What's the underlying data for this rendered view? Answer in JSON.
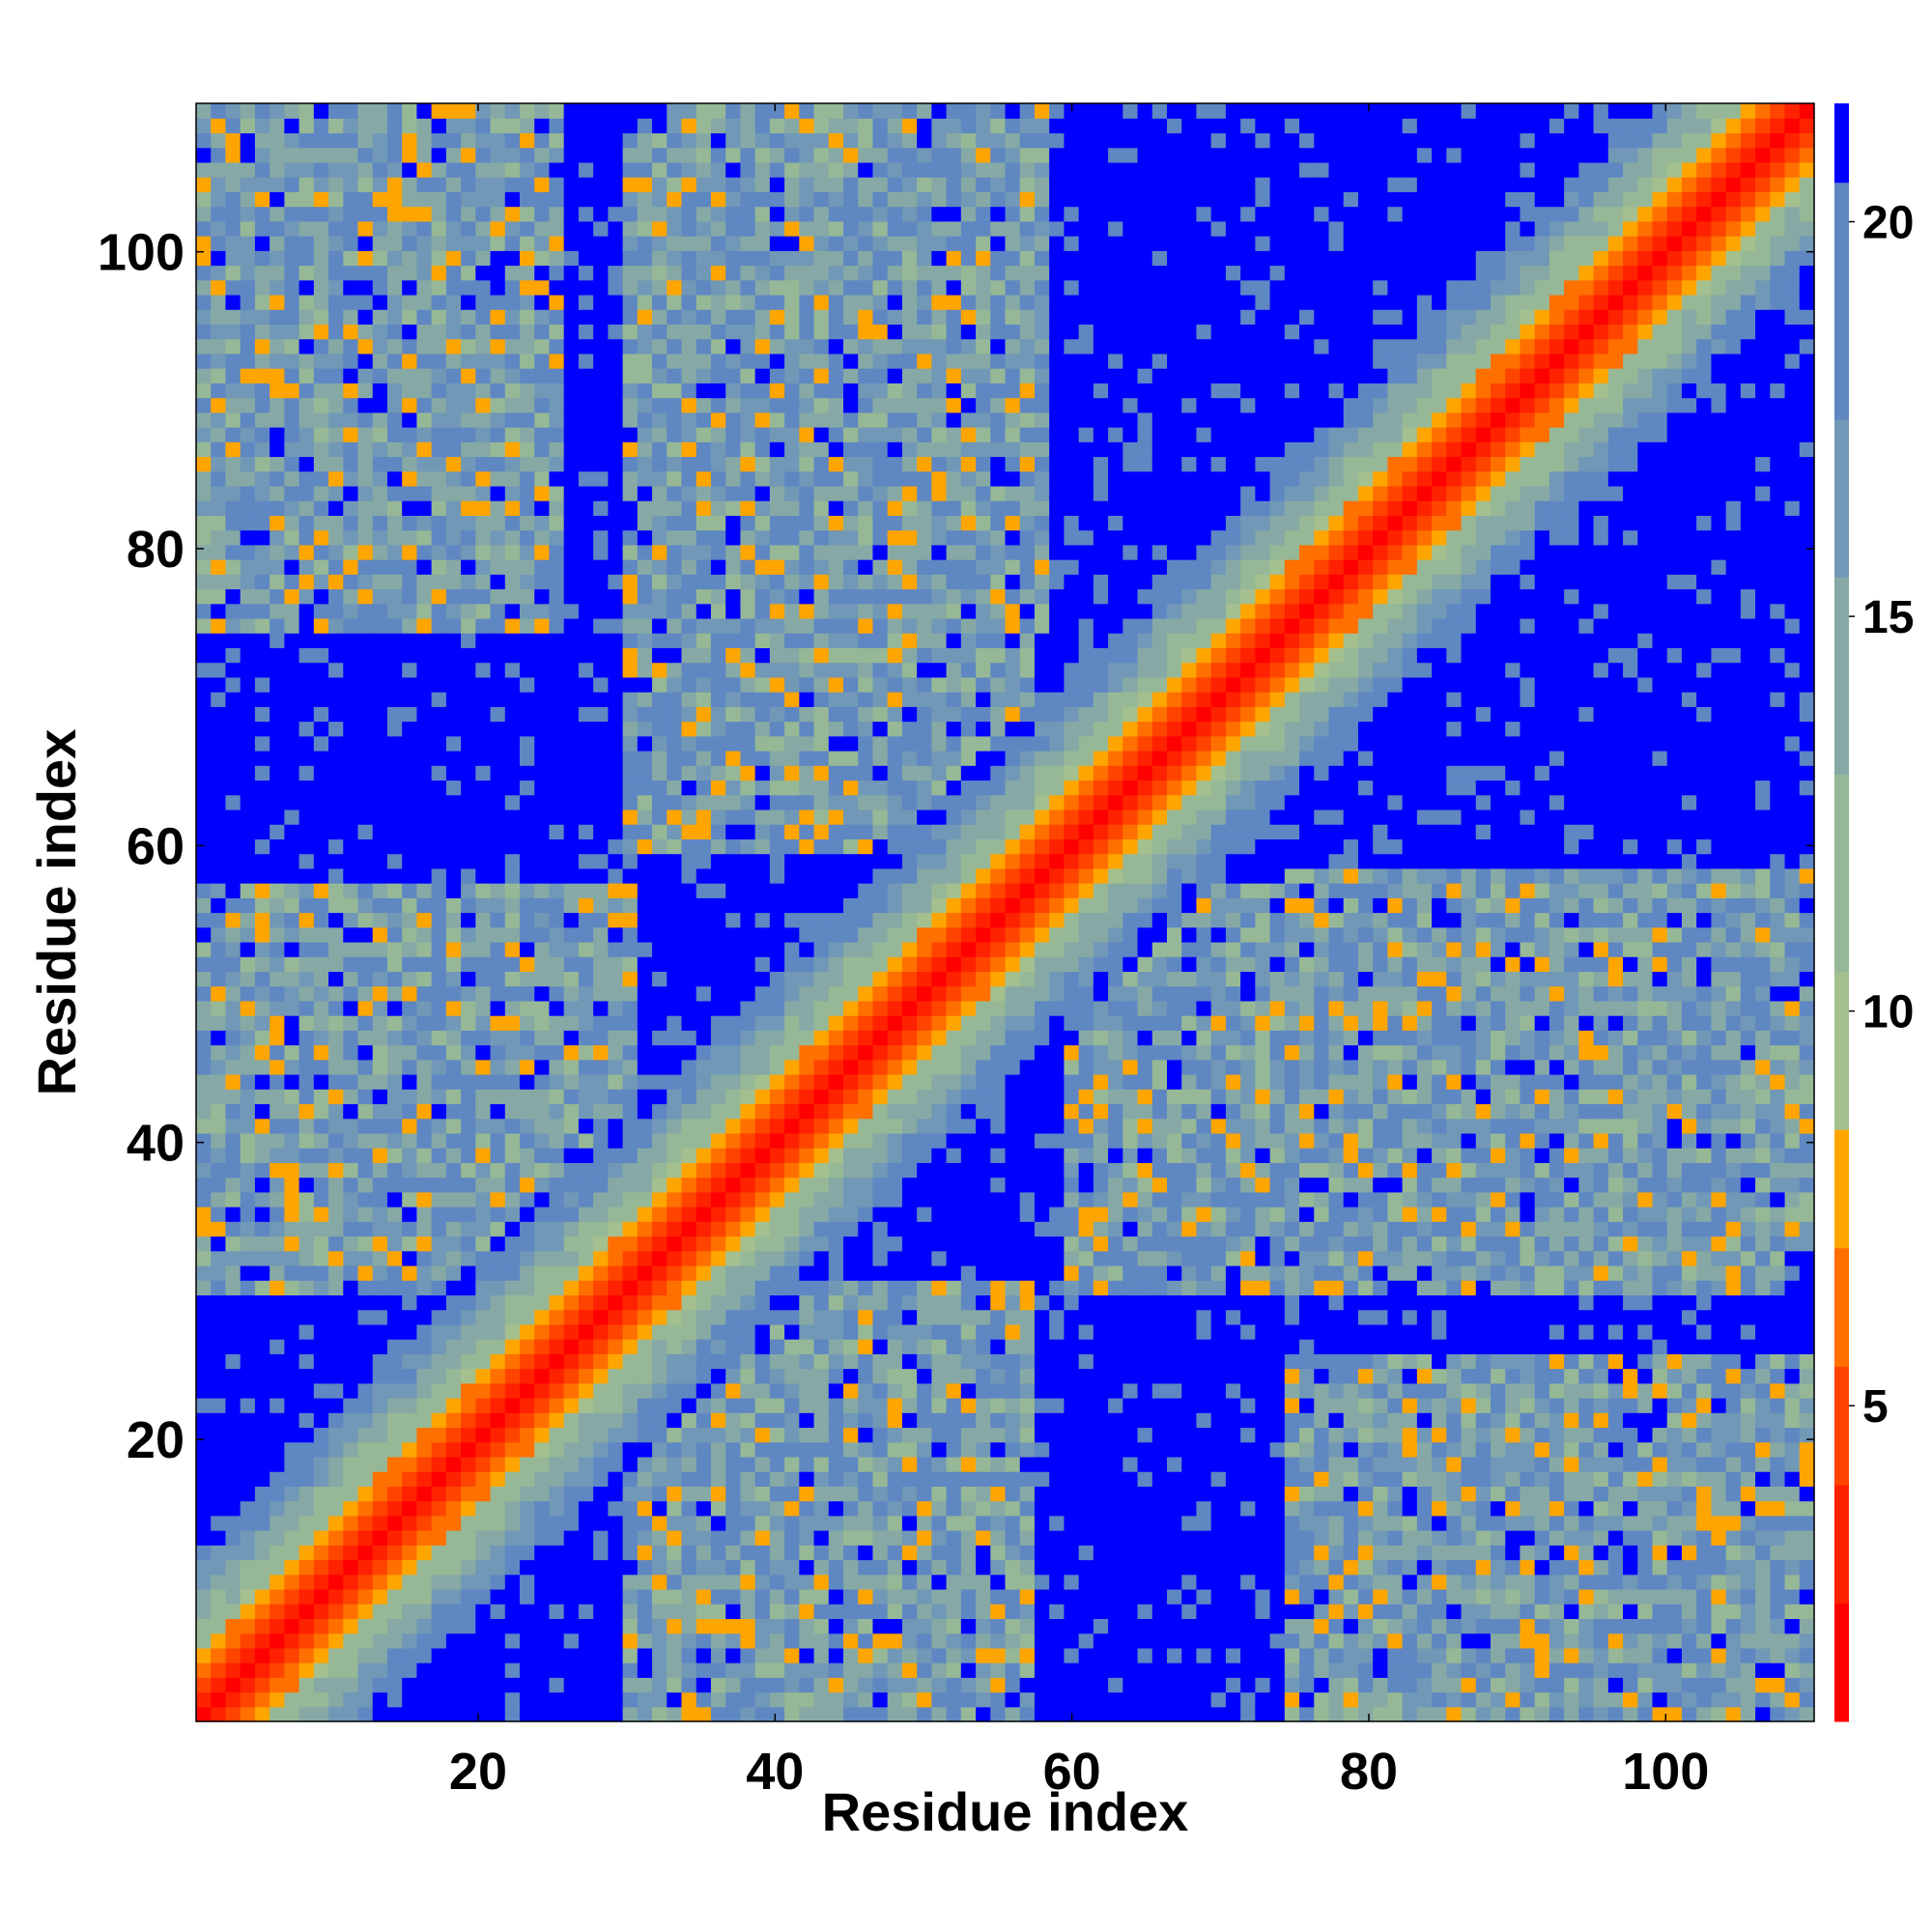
{
  "chart_data": {
    "type": "heatmap",
    "title": "",
    "xlabel": "Residue index",
    "ylabel": "Residue index",
    "n_residues": 110,
    "xlim": [
      1,
      110
    ],
    "ylim": [
      1,
      110
    ],
    "xticks": [
      20,
      40,
      60,
      80,
      100
    ],
    "yticks": [
      20,
      40,
      60,
      80,
      100
    ],
    "colorbar": {
      "range": [
        1,
        21.5
      ],
      "ticks": [
        5,
        10,
        15,
        20
      ],
      "levels": [
        {
          "from": 1.0,
          "to": 2.5,
          "color": "#ff0000"
        },
        {
          "from": 2.5,
          "to": 4.0,
          "color": "#ff2200"
        },
        {
          "from": 4.0,
          "to": 5.5,
          "color": "#ff4400"
        },
        {
          "from": 5.5,
          "to": 7.0,
          "color": "#ff7000"
        },
        {
          "from": 7.0,
          "to": 8.5,
          "color": "#ffa500"
        },
        {
          "from": 8.5,
          "to": 10.5,
          "color": "#a4c08e"
        },
        {
          "from": 10.5,
          "to": 13.0,
          "color": "#96b896"
        },
        {
          "from": 13.0,
          "to": 15.5,
          "color": "#86a9a6"
        },
        {
          "from": 15.5,
          "to": 17.5,
          "color": "#7198b6"
        },
        {
          "from": 17.5,
          "to": 20.5,
          "color": "#5f87c2"
        },
        {
          "from": 20.5,
          "to": 21.5,
          "color": "#0000ff"
        }
      ]
    },
    "background_color": "#0000ff",
    "contact_regions": [
      {
        "name": "diagonal",
        "description": "self-distance band along i = j",
        "from": [
          1,
          1
        ],
        "to": [
          110,
          110
        ]
      },
      {
        "name": "block-1",
        "i_range": [
          1,
          30
        ],
        "j_range": [
          30,
          57
        ],
        "level": "medium"
      },
      {
        "name": "block-2",
        "i_range": [
          1,
          25
        ],
        "j_range": [
          75,
          110
        ],
        "level": "medium"
      },
      {
        "name": "block-3",
        "i_range": [
          33,
          58
        ],
        "j_range": [
          75,
          110
        ],
        "level": "medium"
      },
      {
        "name": "block-4",
        "i_range": [
          60,
          108
        ],
        "j_range": [
          30,
          57
        ],
        "level": "medium"
      },
      {
        "name": "block-5",
        "i_range": [
          95,
          110
        ],
        "j_range": [
          1,
          13
        ],
        "level": "close"
      },
      {
        "name": "block-6",
        "i_range": [
          30,
          52
        ],
        "j_range": [
          1,
          25
        ],
        "level": "medium"
      }
    ]
  }
}
